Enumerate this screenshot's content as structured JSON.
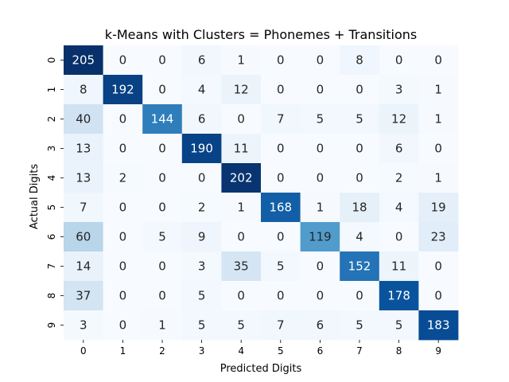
{
  "chart_data": {
    "type": "heatmap",
    "title": "k-Means with Clusters = Phonemes + Transitions",
    "xlabel": "Predicted Digits",
    "ylabel": "Actual Digits",
    "x_categories": [
      "0",
      "1",
      "2",
      "3",
      "4",
      "5",
      "6",
      "7",
      "8",
      "9"
    ],
    "y_categories": [
      "0",
      "1",
      "2",
      "3",
      "4",
      "5",
      "6",
      "7",
      "8",
      "9"
    ],
    "values": [
      [
        205,
        0,
        0,
        6,
        1,
        0,
        0,
        8,
        0,
        0
      ],
      [
        8,
        192,
        0,
        4,
        12,
        0,
        0,
        0,
        3,
        1
      ],
      [
        40,
        0,
        144,
        6,
        0,
        7,
        5,
        5,
        12,
        1
      ],
      [
        13,
        0,
        0,
        190,
        11,
        0,
        0,
        0,
        6,
        0
      ],
      [
        13,
        2,
        0,
        0,
        202,
        0,
        0,
        0,
        2,
        1
      ],
      [
        7,
        0,
        0,
        2,
        1,
        168,
        1,
        18,
        4,
        19
      ],
      [
        60,
        0,
        5,
        9,
        0,
        0,
        119,
        4,
        0,
        23
      ],
      [
        14,
        0,
        0,
        3,
        35,
        5,
        0,
        152,
        11,
        0
      ],
      [
        37,
        0,
        0,
        5,
        0,
        0,
        0,
        0,
        178,
        0
      ],
      [
        3,
        0,
        1,
        5,
        5,
        7,
        6,
        5,
        5,
        183
      ]
    ],
    "colormap": "Blues",
    "colorbar": false,
    "vmin": 0,
    "vmax": 205
  }
}
